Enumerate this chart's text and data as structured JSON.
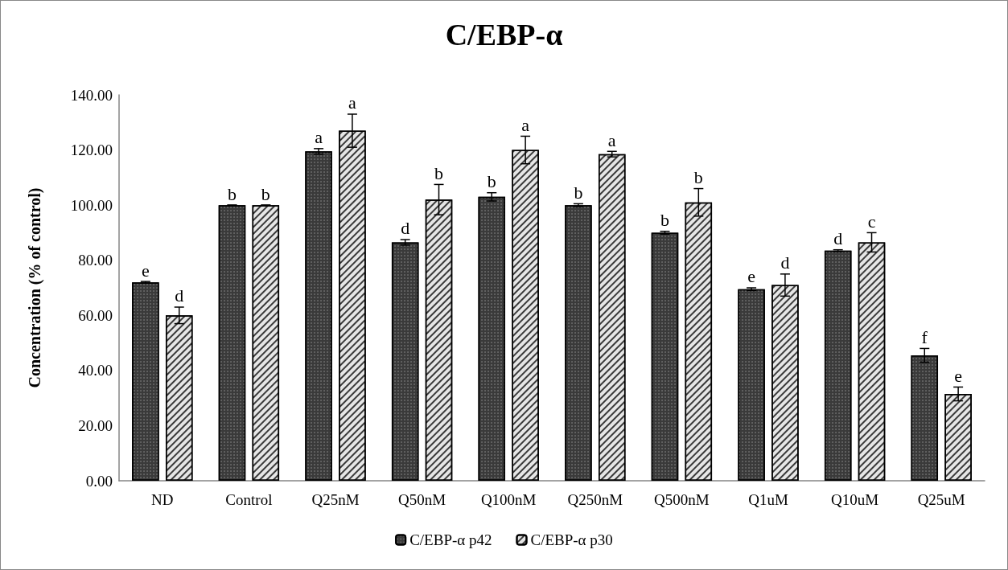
{
  "chart_data": {
    "type": "bar",
    "title": "C/EBP-α",
    "ylabel": "Concentration (% of control)",
    "categories": [
      "ND",
      "Control",
      "Q25nM",
      "Q50nM",
      "Q100nM",
      "Q250nM",
      "Q500nM",
      "Q1uM",
      "Q10uM",
      "Q25uM"
    ],
    "series": [
      {
        "name": "C/EBP-α p42",
        "color": "#3a3a3a",
        "values": [
          72,
          100,
          119.5,
          86.5,
          103,
          100,
          90,
          69.5,
          83.5,
          45.5
        ],
        "errors": [
          0.3,
          0,
          1,
          1,
          1.5,
          0.5,
          0.5,
          0.5,
          0.3,
          2.5
        ]
      },
      {
        "name": "C/EBP-α p30",
        "color": "#e6e6e6",
        "values": [
          60,
          100,
          127,
          102,
          120,
          118.5,
          101,
          71,
          86.5,
          31.5
        ],
        "errors": [
          3,
          0,
          6,
          5.5,
          5,
          1,
          5,
          4,
          3.5,
          2.5
        ]
      }
    ],
    "ylim": [
      0,
      140
    ],
    "yticks": [
      {
        "value": 0,
        "label": "0.00"
      },
      {
        "value": 20,
        "label": "20.00"
      },
      {
        "value": 40,
        "label": "40.00"
      },
      {
        "value": 60,
        "label": "60.00"
      },
      {
        "value": 80,
        "label": "80.00"
      },
      {
        "value": 100,
        "label": "100.00"
      },
      {
        "value": 120,
        "label": "120.00"
      },
      {
        "value": 140,
        "label": "140.00"
      }
    ],
    "annotations": [
      {
        "text": "e",
        "x": "ND",
        "y": 72
      },
      {
        "text": "d",
        "x": "ND",
        "y": 60
      },
      {
        "text": "b",
        "x": "Control",
        "y": 100
      },
      {
        "text": "b",
        "x": "Control",
        "y": 100
      },
      {
        "text": "a",
        "x": "Q25nM",
        "y": 119.5
      },
      {
        "text": "a",
        "x": "Q25nM",
        "y": 127
      },
      {
        "text": "d",
        "x": "Q50nM",
        "y": 86.5
      },
      {
        "text": "b",
        "x": "Q50nM",
        "y": 102
      },
      {
        "text": "b",
        "x": "Q100nM",
        "y": 103
      },
      {
        "text": "a",
        "x": "Q100nM",
        "y": 120
      },
      {
        "text": "b",
        "x": "Q250nM",
        "y": 100
      },
      {
        "text": "a",
        "x": "Q250nM",
        "y": 118.5
      },
      {
        "text": "b",
        "x": "Q500nM",
        "y": 90
      },
      {
        "text": "b",
        "x": "Q500nM",
        "y": 101
      },
      {
        "text": "e",
        "x": "Q1uM",
        "y": 69.5
      },
      {
        "text": "d",
        "x": "Q1uM",
        "y": 71
      },
      {
        "text": "d",
        "x": "Q10uM",
        "y": 83.5
      },
      {
        "text": "c",
        "x": "Q10uM",
        "y": 86.5
      },
      {
        "text": "f",
        "x": "Q25uM",
        "y": 45.5
      },
      {
        "text": "e",
        "x": "Q25uM",
        "y": 31.5
      }
    ],
    "legend": "bottom",
    "grid": false
  }
}
